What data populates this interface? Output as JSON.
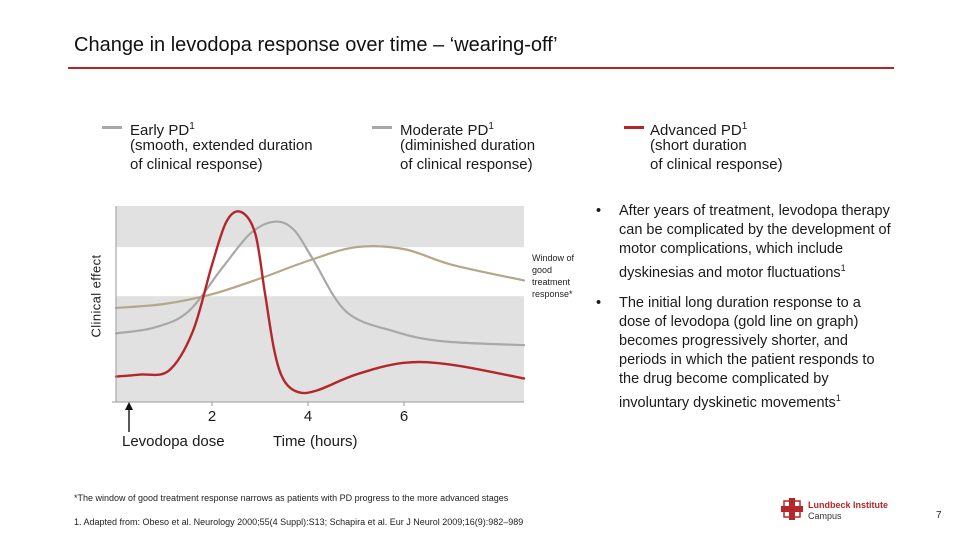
{
  "title": "Change in levodopa response over time – ‘wearing-off’",
  "legend": [
    {
      "label": "Early PD",
      "sup": "1",
      "desc": "(smooth, extended duration\nof clinical response)",
      "color": "#a8a8a8"
    },
    {
      "label": "Moderate PD",
      "sup": "1",
      "desc": "(diminished duration\nof clinical response)",
      "color": "#a8a8a8"
    },
    {
      "label": "Advanced PD",
      "sup": "1",
      "desc": "(short duration\nof clinical response)",
      "color": "#b5262a"
    }
  ],
  "chart_data": {
    "type": "line",
    "xlabel": "Time (hours)",
    "ylabel": "Clinical effect",
    "xticks": [
      2,
      4,
      6
    ],
    "xlim": [
      0,
      8.5
    ],
    "ylim": [
      0,
      10
    ],
    "window": {
      "label": "Window of good treatment response*",
      "ymin": 5.4,
      "ymax": 7.9
    },
    "dose_label": "Levodopa dose",
    "series": [
      {
        "color": "#b4a888",
        "x": [
          0,
          1,
          2,
          3,
          4,
          5,
          6,
          7,
          8.5
        ],
        "y": [
          4.8,
          5.0,
          5.5,
          6.3,
          7.2,
          7.9,
          7.8,
          7.0,
          6.2
        ]
      },
      {
        "color": "#a8a8a8",
        "x": [
          0,
          0.8,
          1.5,
          2.2,
          2.8,
          3.3,
          3.7,
          4.1,
          4.8,
          5.8,
          6.8,
          8.5
        ],
        "y": [
          3.5,
          3.8,
          4.6,
          6.8,
          8.6,
          9.2,
          8.8,
          7.3,
          4.6,
          3.6,
          3.1,
          2.9
        ]
      },
      {
        "color": "#b5262a",
        "x": [
          0,
          0.5,
          1.1,
          1.6,
          2.0,
          2.3,
          2.6,
          2.9,
          3.1,
          3.3,
          3.5,
          3.8,
          4.2,
          5.0,
          6.0,
          7.0,
          8.5
        ],
        "y": [
          1.3,
          1.4,
          1.6,
          3.6,
          7.0,
          9.2,
          9.7,
          8.6,
          5.6,
          2.6,
          1.1,
          0.5,
          0.6,
          1.4,
          2.0,
          1.9,
          1.2
        ]
      }
    ]
  },
  "bullets": [
    {
      "text": "After years of treatment, levodopa therapy can be complicated by the development of motor complications, which include dyskinesias and motor fluctuations",
      "sup": "1"
    },
    {
      "text": "The initial long duration response to a dose of levodopa (gold line on graph) becomes progressively shorter, and periods in which the patient responds to the drug become complicated by involuntary dyskinetic movements",
      "sup": "1"
    }
  ],
  "bullet_marker": "•",
  "footnote": "*The window of good treatment response narrows as patients with PD progress to the more advanced stages",
  "reference": "1. Adapted from: Obeso et al. Neurology 2000;55(4 Suppl):S13; Schapira et al. Eur J Neurol 2009;16(9):982–989",
  "logo": {
    "line1": "Lundbeck Institute",
    "line2": "Campus"
  },
  "page_number": "7"
}
